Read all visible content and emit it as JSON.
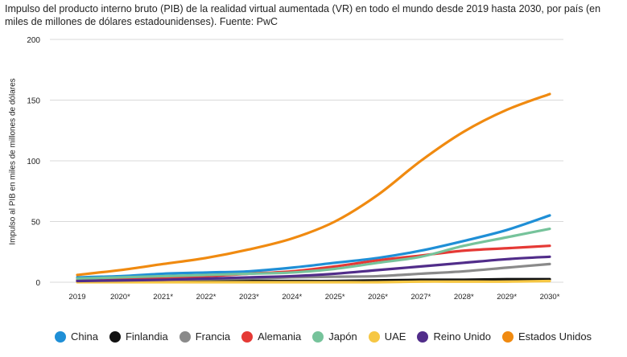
{
  "chart_data": {
    "type": "line",
    "title": "Impulso del producto interno bruto (PIB) de la realidad virtual aumentada (VR) en todo el mundo desde 2019 hasta 2030, por país (en miles de millones de dólares estadounidenses). Fuente: PwC",
    "xlabel": "",
    "ylabel": "Impulso al PIB en miles de millones de dólares",
    "ylim": [
      0,
      200
    ],
    "yticks": [
      0,
      50,
      100,
      150,
      200
    ],
    "grid": true,
    "legend_position": "bottom",
    "categories": [
      "2019",
      "2020*",
      "2021*",
      "2022*",
      "2023*",
      "2024*",
      "2025*",
      "2026*",
      "2027*",
      "2028*",
      "2029*",
      "2030*"
    ],
    "series": [
      {
        "name": "China",
        "color": "#1f8fd6",
        "values": [
          4,
          5,
          7,
          8,
          9,
          12,
          16,
          20,
          26,
          34,
          43,
          55
        ]
      },
      {
        "name": "Finlandia",
        "color": "#111111",
        "values": [
          1,
          1,
          1,
          1,
          1,
          1,
          1,
          1.5,
          2,
          2,
          2.5,
          2.5
        ]
      },
      {
        "name": "Francia",
        "color": "#8a8a8a",
        "values": [
          1,
          1.5,
          2,
          2.5,
          3,
          4,
          4.5,
          5,
          7,
          9,
          12,
          15
        ]
      },
      {
        "name": "Alemania",
        "color": "#e53935",
        "values": [
          2,
          3,
          4,
          5,
          7,
          9,
          13,
          18,
          22,
          26,
          28,
          30
        ]
      },
      {
        "name": "Japón",
        "color": "#76c39b",
        "values": [
          3,
          4,
          5,
          6,
          7,
          8,
          11,
          16,
          21,
          30,
          37,
          44
        ]
      },
      {
        "name": "UAE",
        "color": "#f6c744",
        "values": [
          0,
          0,
          0,
          0,
          0,
          0,
          0,
          0,
          0.5,
          0.5,
          0.5,
          1
        ]
      },
      {
        "name": "Reino Unido",
        "color": "#512d8a",
        "values": [
          1,
          1.5,
          2,
          3,
          4,
          5,
          7,
          10,
          13,
          16,
          19,
          21
        ]
      },
      {
        "name": "Estados Unidos",
        "color": "#f08a10",
        "values": [
          6,
          10,
          15,
          20,
          27,
          36,
          50,
          72,
          100,
          124,
          142,
          155
        ]
      }
    ]
  }
}
